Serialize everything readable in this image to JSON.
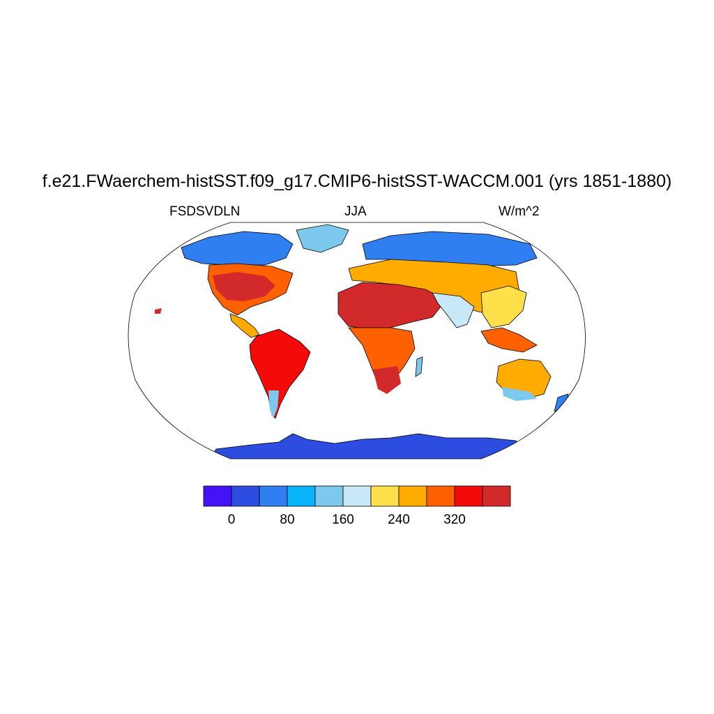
{
  "title": "f.e21.FWaerchem-histSST.f09_g17.CMIP6-histSST-WACCM.001 (yrs 1851-1880)",
  "subtitles": {
    "left": "FSDSVDLN",
    "center": "JJA",
    "right": "W/m^2"
  },
  "colorbar": {
    "colors": [
      "#4413f5",
      "#2d4de1",
      "#2f7ff0",
      "#08b4f9",
      "#7dc9ee",
      "#c8e8f8",
      "#ffe04a",
      "#ffab00",
      "#ff6000",
      "#f50a0a",
      "#d22a2a"
    ],
    "tick_labels": [
      "0",
      "80",
      "160",
      "240",
      "320"
    ],
    "tick_values": [
      0,
      80,
      160,
      240,
      320
    ],
    "interval": 40,
    "min": -40,
    "max": 400
  },
  "map": {
    "projection": "Robinson",
    "variable": "FSDSVDLN",
    "season": "JJA",
    "units": "W/m^2",
    "ocean_fill": "#ffffff",
    "outline_color": "#000000"
  }
}
